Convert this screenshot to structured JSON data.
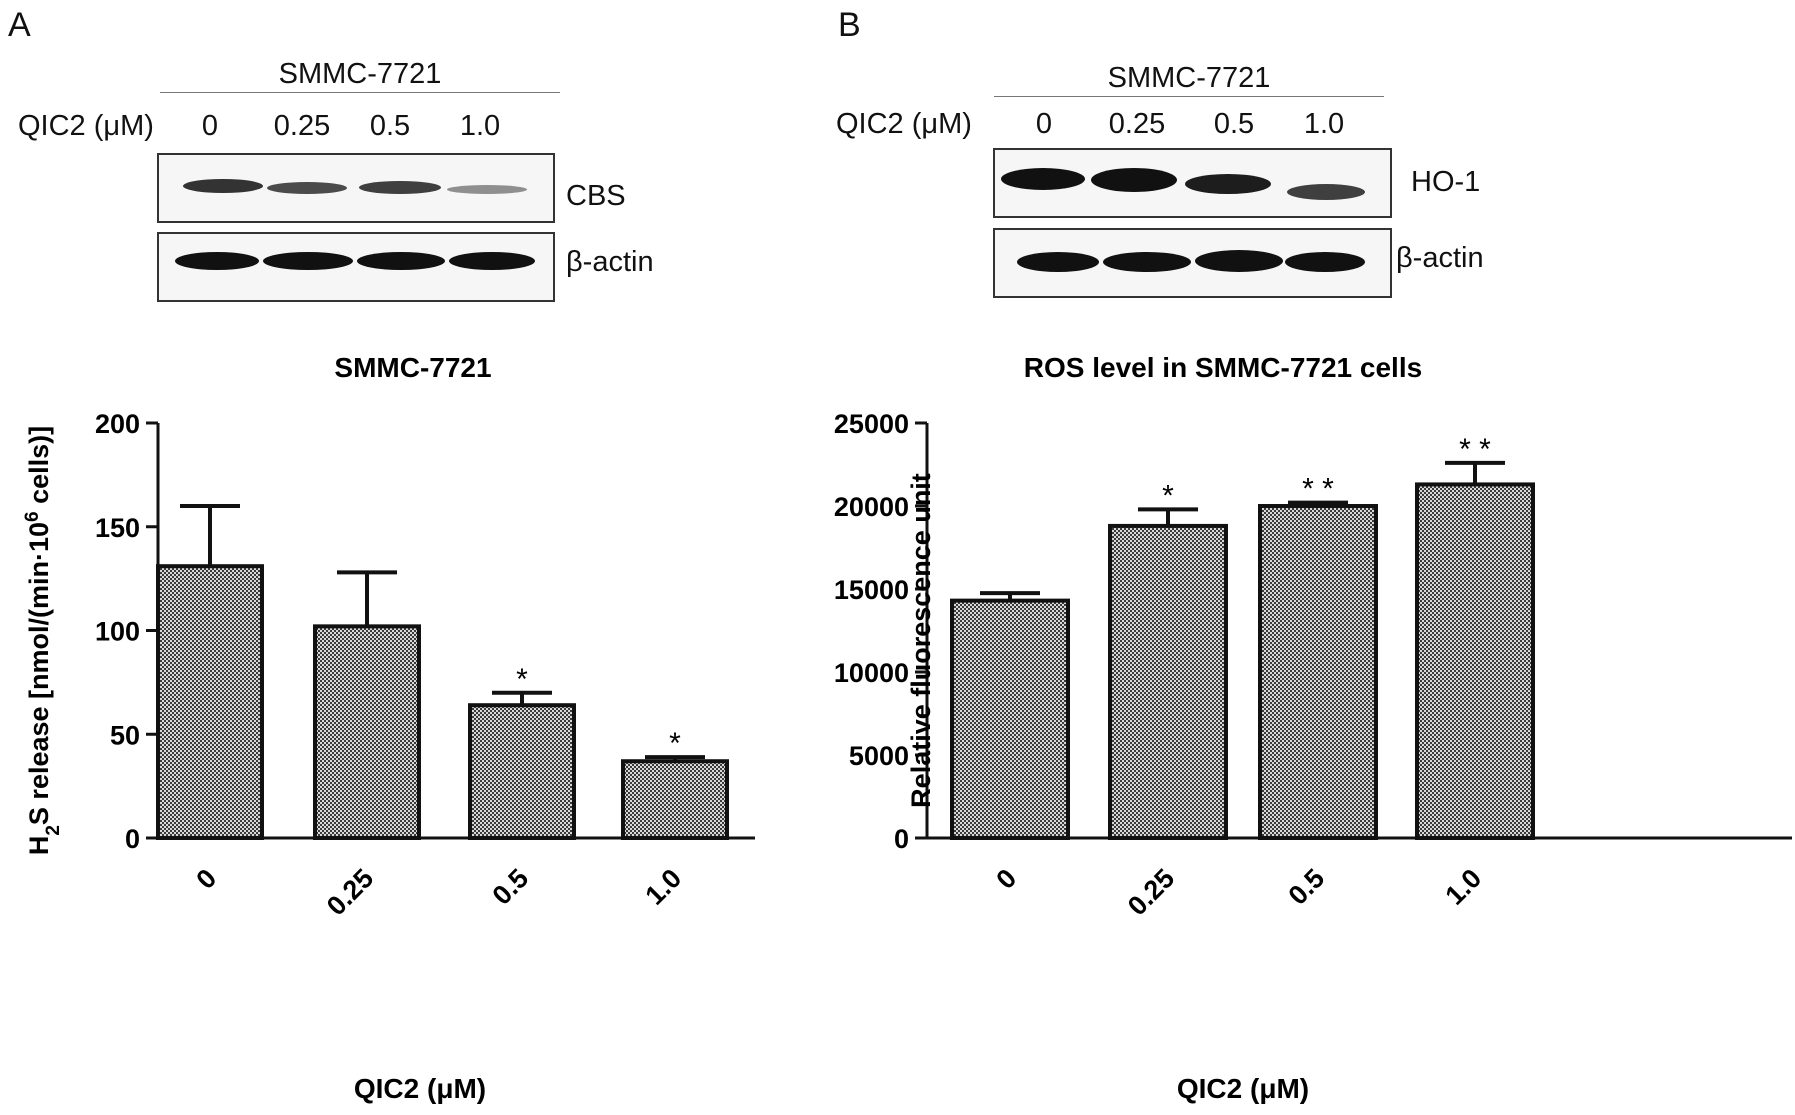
{
  "panels": [
    {
      "letter": "A",
      "blot": {
        "title": "SMMC-7721",
        "treatment_label": "QIC2 (μM)",
        "lanes": [
          "0",
          "0.25",
          "0.5",
          "1.0"
        ],
        "rows": [
          {
            "label": "CBS",
            "band_intensity": [
              0.85,
              0.75,
              0.8,
              0.45
            ]
          },
          {
            "label": "β-actin",
            "band_intensity": [
              1.0,
              1.0,
              1.0,
              1.0
            ]
          }
        ]
      }
    },
    {
      "letter": "B",
      "blot": {
        "title": "SMMC-7721",
        "treatment_label": "QIC2 (μM)",
        "lanes": [
          "0",
          "0.25",
          "0.5",
          "1.0"
        ],
        "rows": [
          {
            "label": "HO-1",
            "band_intensity": [
              1.0,
              1.0,
              0.95,
              0.8
            ]
          },
          {
            "label": "β-actin",
            "band_intensity": [
              1.0,
              1.0,
              1.0,
              1.0
            ]
          }
        ]
      }
    }
  ],
  "chart_data": [
    {
      "type": "bar",
      "title": "SMMC-7721",
      "xlabel": "QIC2 (μM)",
      "ylabel": "H2S release [nmol/(min·106 cells)]",
      "ylabel_parts": {
        "a": "H",
        "sub": "2",
        "b": "S release [nmol/(min·10",
        "sup": "6",
        "c": " cells)]"
      },
      "categories": [
        "0",
        "0.25",
        "0.5",
        "1.0"
      ],
      "values": [
        131,
        102,
        64,
        37
      ],
      "errors": [
        29,
        26,
        6,
        2
      ],
      "significance": [
        "",
        "",
        "*",
        "*"
      ],
      "ylim": [
        0,
        200
      ],
      "yticks": [
        "0",
        "50",
        "100",
        "150",
        "200"
      ],
      "bar_color": "#8a8a8a"
    },
    {
      "type": "bar",
      "title": "ROS level in SMMC-7721 cells",
      "xlabel": "QIC2 (μM)",
      "ylabel": "Relative fluorescence unit",
      "categories": [
        "0",
        "0.25",
        "0.5",
        "1.0"
      ],
      "values": [
        14300,
        18800,
        20000,
        21300
      ],
      "errors": [
        450,
        1000,
        200,
        1300
      ],
      "significance": [
        "",
        "*",
        "* *",
        "* *"
      ],
      "ylim": [
        0,
        25000
      ],
      "yticks": [
        "0",
        "5000",
        "10000",
        "15000",
        "20000",
        "25000"
      ],
      "bar_color": "#8a8a8a"
    }
  ]
}
